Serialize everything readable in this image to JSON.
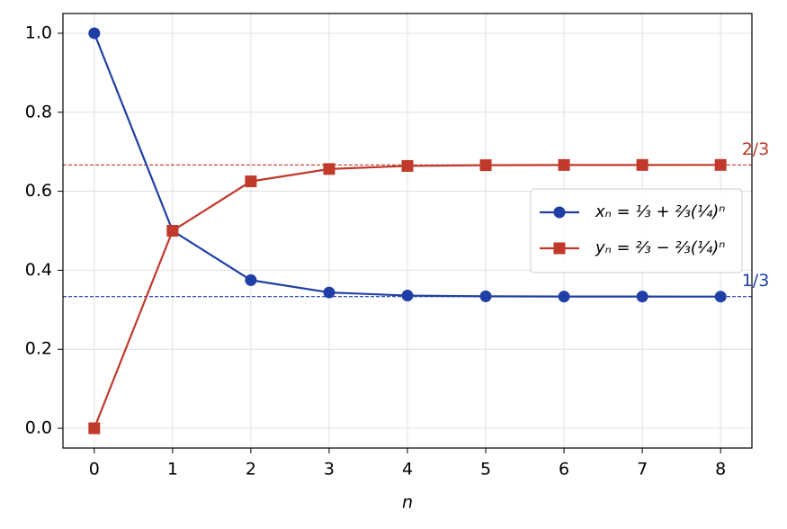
{
  "chart_data": {
    "type": "line",
    "x": [
      0,
      1,
      2,
      3,
      4,
      5,
      6,
      7,
      8
    ],
    "series": [
      {
        "name": "xₙ = ⅓ + ⅔(¼)ⁿ",
        "color": "#1f3fa6",
        "marker": "circle",
        "values": [
          1.0,
          0.5,
          0.375,
          0.3438,
          0.3359,
          0.334,
          0.3335,
          0.3334,
          0.3333
        ]
      },
      {
        "name": "yₙ = ⅔ − ⅔(¼)ⁿ",
        "color": "#c0392b",
        "marker": "square",
        "values": [
          0.0,
          0.5,
          0.625,
          0.6563,
          0.6641,
          0.666,
          0.6665,
          0.6666,
          0.6667
        ]
      }
    ],
    "hlines": [
      {
        "value": 0.6667,
        "label": "2/3",
        "color": "#c0392b"
      },
      {
        "value": 0.3333,
        "label": "1/3",
        "color": "#1f3fa6"
      }
    ],
    "xlabel": "n",
    "xlim": [
      -0.4,
      8.4
    ],
    "ylim": [
      -0.05,
      1.05
    ],
    "xticks": [
      0,
      1,
      2,
      3,
      4,
      5,
      6,
      7,
      8
    ],
    "yticks": [
      {
        "value": 0,
        "label": "0.0"
      },
      0.2,
      0.4,
      0.6,
      0.8,
      {
        "value": 1,
        "label": "1.0"
      }
    ],
    "grid": true,
    "legend": "center right"
  }
}
